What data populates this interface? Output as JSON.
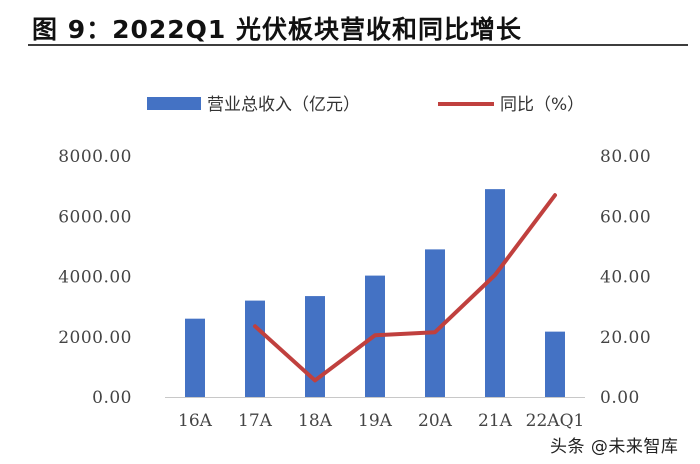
{
  "title": "图 9：2022Q1 光伏板块营收和同比增长",
  "watermark": "头条 @未来智库",
  "colors": {
    "bar": "#4472C4",
    "line": "#C0403E"
  },
  "chart_data": {
    "type": "bar+line",
    "categories": [
      "16A",
      "17A",
      "18A",
      "19A",
      "20A",
      "21A",
      "22AQ1"
    ],
    "series": [
      {
        "name": "营业总收入（亿元）",
        "type": "bar",
        "axis": "left",
        "values": [
          2600,
          3200,
          3350,
          4030,
          4900,
          6900,
          2170
        ]
      },
      {
        "name": "同比（%）",
        "type": "line",
        "axis": "right",
        "values": [
          null,
          23.5,
          5.5,
          20.5,
          21.5,
          40.5,
          67.0
        ]
      }
    ],
    "y_left": {
      "ylim": [
        0,
        8000
      ],
      "ticks": [
        "0.00",
        "2000.00",
        "4000.00",
        "6000.00",
        "8000.00"
      ]
    },
    "y_right": {
      "ylim": [
        0,
        80
      ],
      "ticks": [
        "0.00",
        "20.00",
        "40.00",
        "60.00",
        "80.00"
      ]
    },
    "legend_position": "top",
    "grid": false
  }
}
